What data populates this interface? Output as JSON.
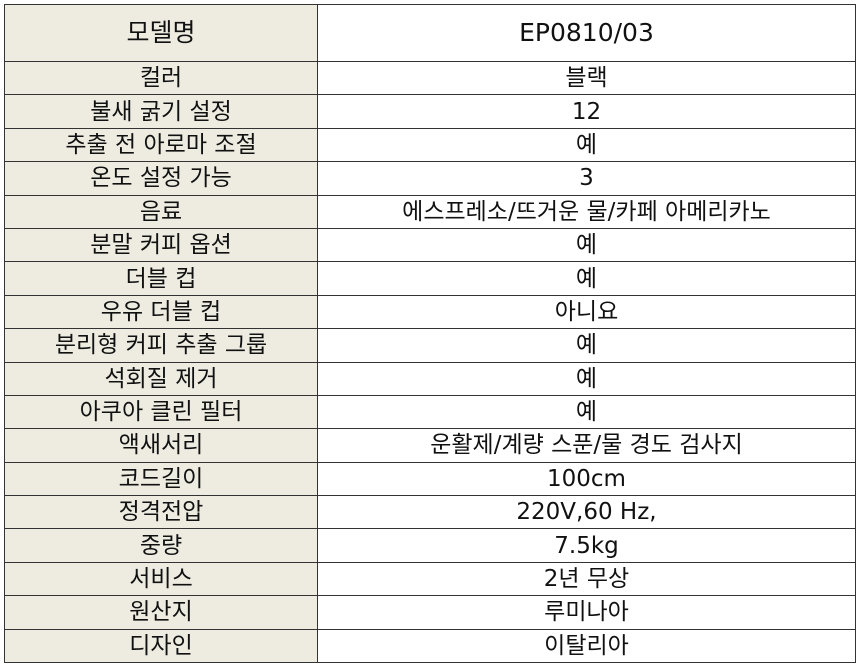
{
  "colors": {
    "label_bg": "#eeece1",
    "border": "#333333"
  },
  "rows": [
    {
      "label": "모델명",
      "value": "EP0810/03"
    },
    {
      "label": "컬러",
      "value": "블랙"
    },
    {
      "label": "불새 굵기 설정",
      "value": "12"
    },
    {
      "label": "추출 전 아로마 조절",
      "value": "예"
    },
    {
      "label": "온도 설정 가능",
      "value": "3"
    },
    {
      "label": "음료",
      "value": "에스프레소/뜨거운 물/카페 아메리카노"
    },
    {
      "label": "분말 커피 옵션",
      "value": "예"
    },
    {
      "label": "더블 컵",
      "value": "예"
    },
    {
      "label": "우유 더블 컵",
      "value": "아니요"
    },
    {
      "label": "분리형 커피 추출 그룹",
      "value": "예"
    },
    {
      "label": "석회질 제거",
      "value": "예"
    },
    {
      "label": "아쿠아 클린 필터",
      "value": "예"
    },
    {
      "label": "액새서리",
      "value": "운활제/계량 스푼/물 경도 검사지"
    },
    {
      "label": "코드길이",
      "value": "100cm"
    },
    {
      "label": "정격전압",
      "value": "220V,60 Hz,"
    },
    {
      "label": "중량",
      "value": "7.5kg"
    },
    {
      "label": "서비스",
      "value": "2년 무상"
    },
    {
      "label": "원산지",
      "value": "루미나아"
    },
    {
      "label": "디자인",
      "value": "이탈리아"
    }
  ]
}
